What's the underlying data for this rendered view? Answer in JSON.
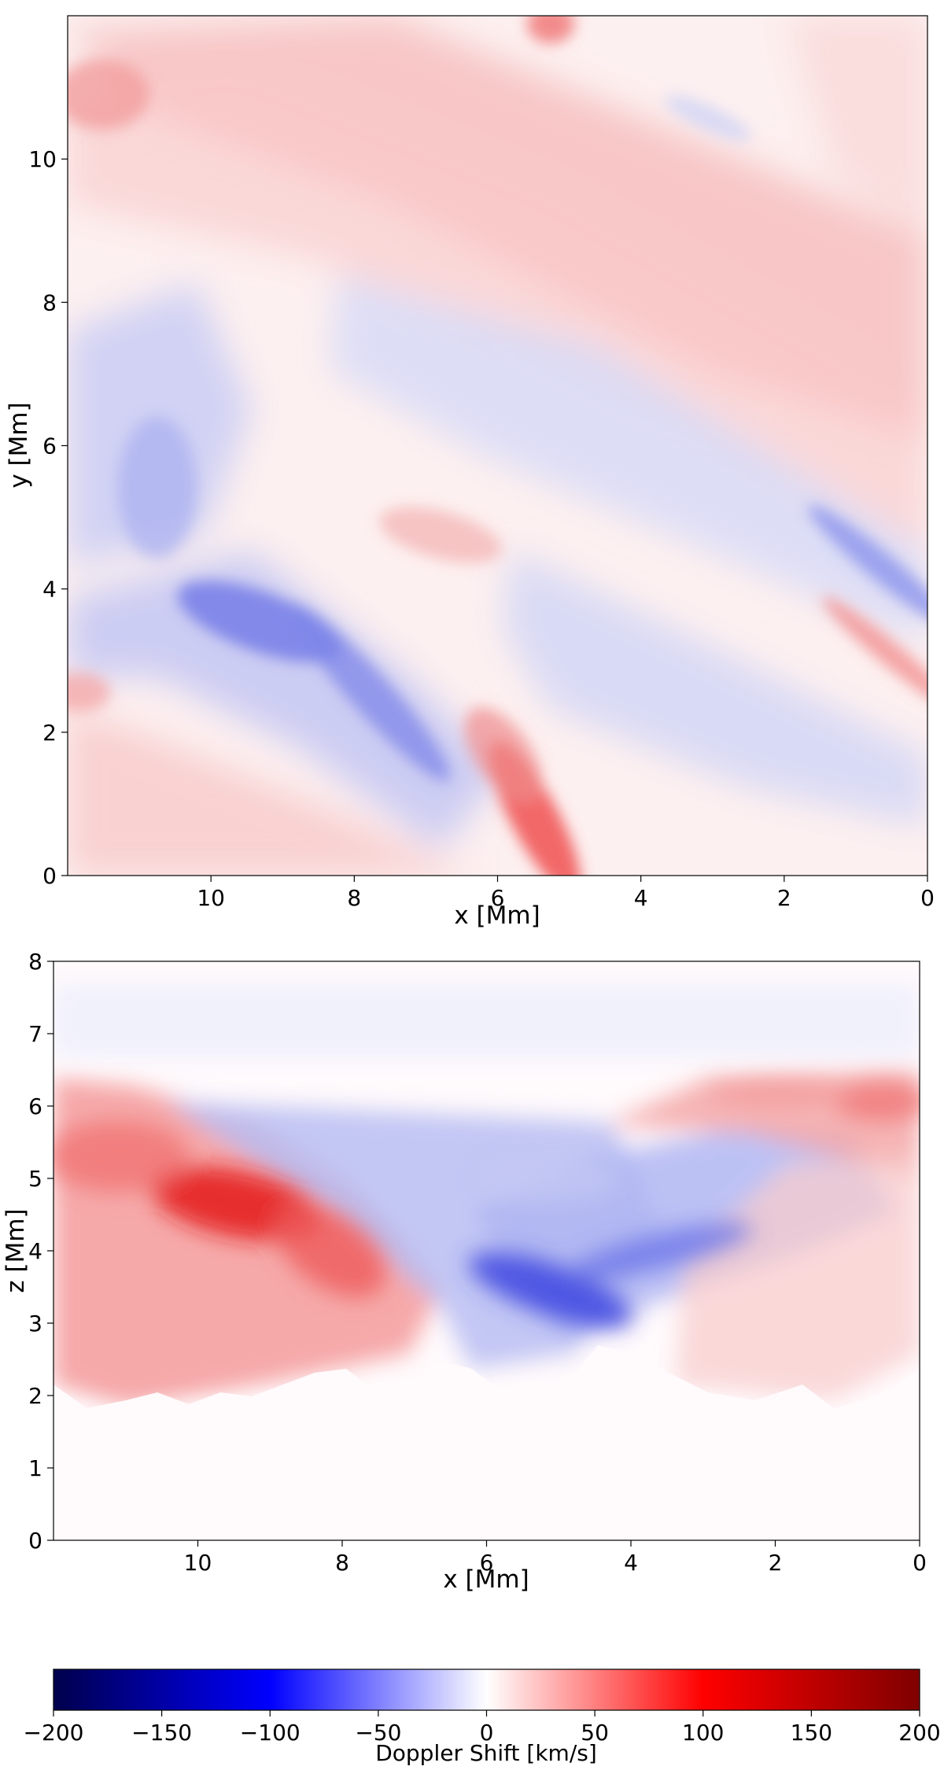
{
  "chart_data": [
    {
      "type": "heatmap",
      "panel": "top",
      "xlabel": "x [Mm]",
      "ylabel": "y [Mm]",
      "xlim": [
        12,
        0
      ],
      "ylim": [
        0,
        12
      ],
      "xticks": [
        10,
        8,
        6,
        4,
        2,
        0
      ],
      "yticks": [
        0,
        2,
        4,
        6,
        8,
        10
      ],
      "xtick_labels": [
        "10",
        "8",
        "6",
        "4",
        "2",
        "0"
      ],
      "ytick_labels": [
        "0",
        "2",
        "4",
        "6",
        "8",
        "10"
      ],
      "colormap": "bwr",
      "features": [
        {
          "x": 9.3,
          "y": 3.6,
          "value": -80
        },
        {
          "x": 8.2,
          "y": 2.8,
          "value": -70
        },
        {
          "x": 5.3,
          "y": 0.5,
          "value": 100
        },
        {
          "x": 5.5,
          "y": 1.6,
          "value": 70
        },
        {
          "x": 0.3,
          "y": 3.5,
          "value": -70
        },
        {
          "x": 0.2,
          "y": 2.5,
          "value": 60
        },
        {
          "x": 11.5,
          "y": 10.7,
          "value": 50
        },
        {
          "x": 5.2,
          "y": 11.9,
          "value": 80
        },
        {
          "x": 3.5,
          "y": 8.3,
          "value": 35
        },
        {
          "x": 6.0,
          "y": 6.8,
          "value": -30
        },
        {
          "x": 11.2,
          "y": 6.0,
          "value": -35
        },
        {
          "x": 3.0,
          "y": 2.5,
          "value": -25
        }
      ]
    },
    {
      "type": "heatmap",
      "panel": "bottom",
      "xlabel": "x [Mm]",
      "ylabel": "z [Mm]",
      "xlim": [
        12,
        0
      ],
      "ylim": [
        0,
        8
      ],
      "xticks": [
        10,
        8,
        6,
        4,
        2,
        0
      ],
      "yticks": [
        0,
        1,
        2,
        3,
        4,
        5,
        6,
        7,
        8
      ],
      "xtick_labels": [
        "10",
        "8",
        "6",
        "4",
        "2",
        "0"
      ],
      "ytick_labels": [
        "0",
        "1",
        "2",
        "3",
        "4",
        "5",
        "6",
        "7",
        "8"
      ],
      "colormap": "bwr",
      "features": [
        {
          "x": 9.3,
          "y": 4.6,
          "value": 115
        },
        {
          "x": 8.0,
          "y": 3.6,
          "value": 80
        },
        {
          "x": 11.0,
          "y": 5.2,
          "value": 70
        },
        {
          "x": 11.2,
          "y": 2.2,
          "value": 40
        },
        {
          "x": 7.0,
          "y": 5.3,
          "value": -50
        },
        {
          "x": 5.3,
          "y": 3.4,
          "value": -110
        },
        {
          "x": 4.0,
          "y": 4.2,
          "value": -60
        },
        {
          "x": 1.5,
          "y": 6.0,
          "value": 60
        },
        {
          "x": 0.3,
          "y": 6.0,
          "value": 75
        },
        {
          "x": 1.5,
          "y": 3.0,
          "value": 25
        },
        {
          "x": 6.0,
          "y": 7.2,
          "value": -8
        }
      ]
    }
  ],
  "colorbar": {
    "label": "Doppler Shift [km/s]",
    "range": [
      -200,
      200
    ],
    "ticks": [
      -200,
      -150,
      -100,
      -50,
      0,
      50,
      100,
      150,
      200
    ],
    "tick_labels": [
      "−200",
      "−150",
      "−100",
      "−50",
      "0",
      "50",
      "100",
      "150",
      "200"
    ]
  }
}
